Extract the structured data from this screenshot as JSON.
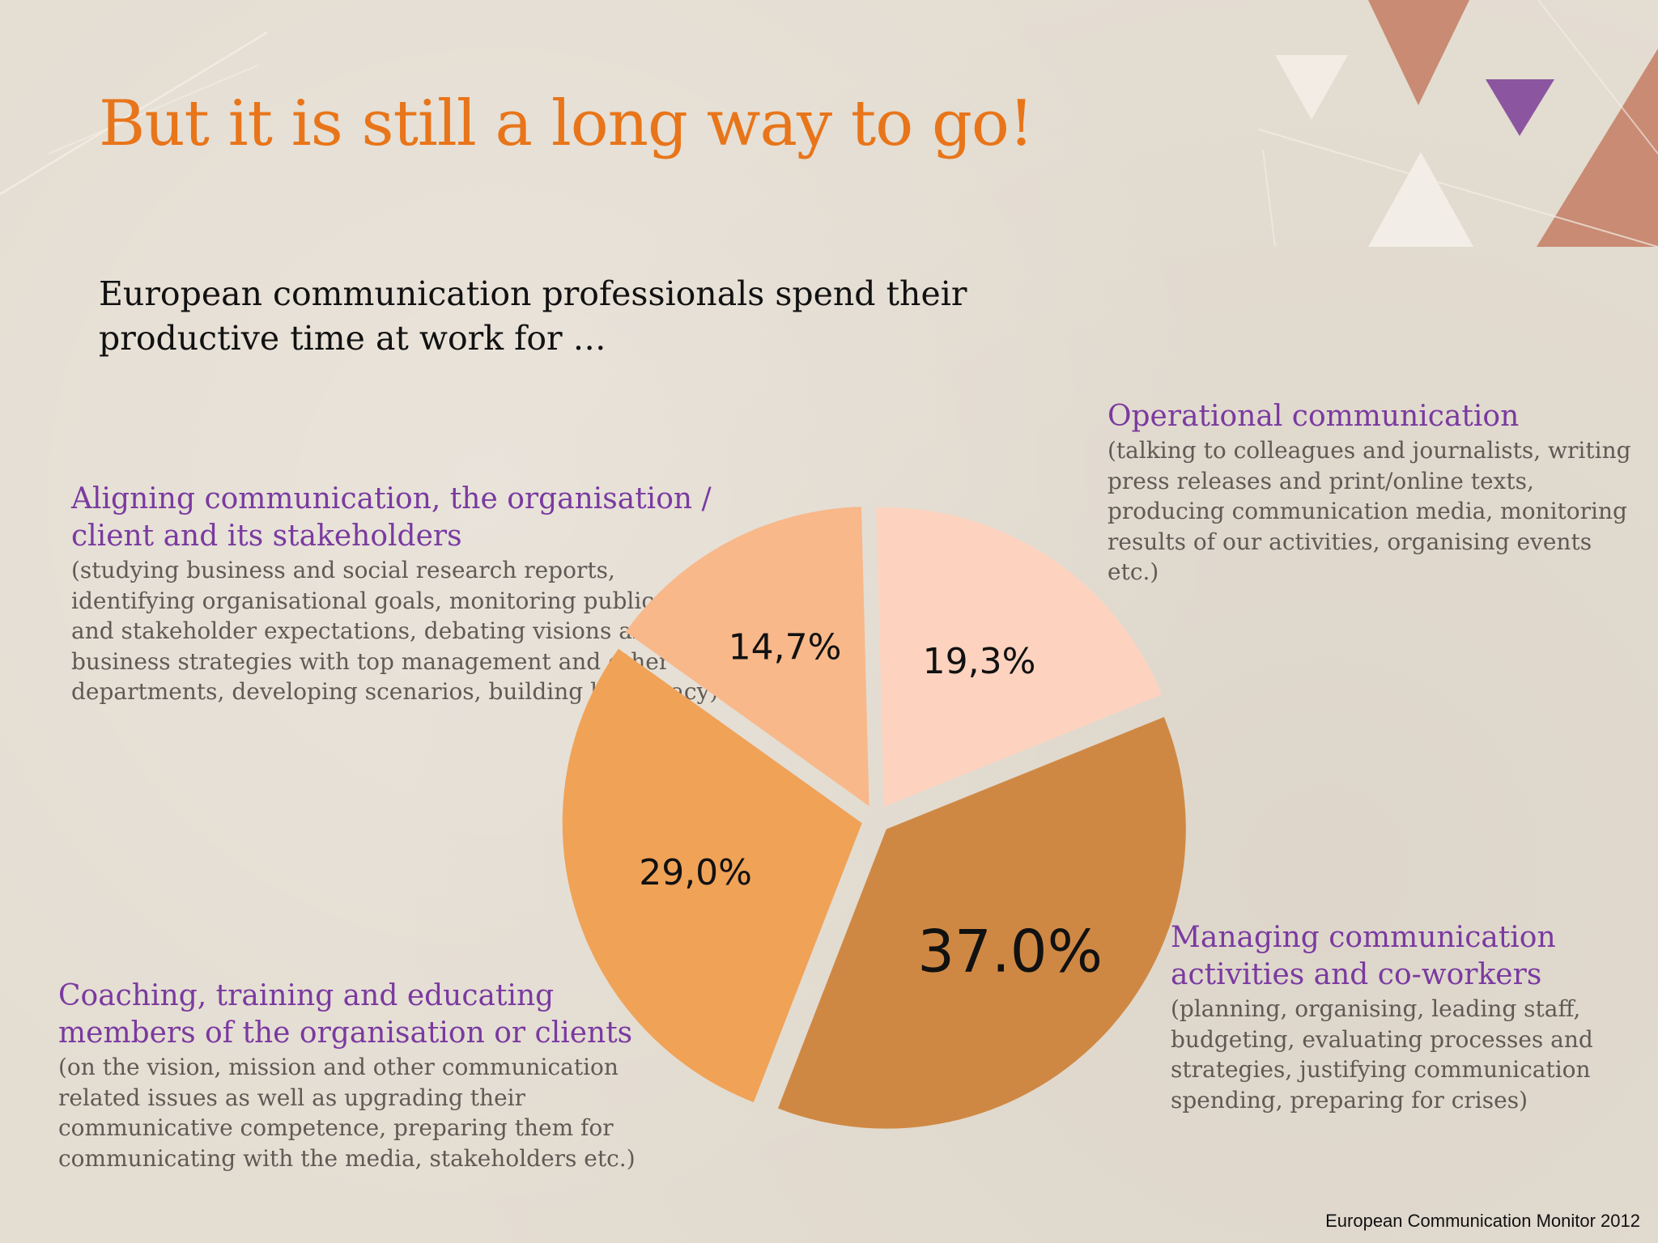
{
  "title": "But it is still a long way to go!",
  "subtitle": "European communication professionals spend their productive time at work for …",
  "source": "European Communication Monitor 2012",
  "colors": {
    "title": "#e8751a",
    "heading": "#7a3aa0",
    "description": "#5f5a55",
    "background": "#e4ddd2"
  },
  "blocks": {
    "operational": {
      "heading": "Operational communication",
      "description": "(talking to colleagues and journalists, writing press releases and print/online texts, producing communication media, monitoring results of  our activities, organising events etc.)"
    },
    "aligning": {
      "heading": "Aligning communication, the organisation / client and its stakeholders",
      "description": "(studying business and social research reports, identifying organisational goals, monitoring public issues and stakeholder expectations, debating visions and business strategies with top management and other departments, developing scenarios, building legitimacy)"
    },
    "managing": {
      "heading": "Managing communication activities and co-workers",
      "description": "(planning, organising, leading staff, budgeting, evaluating processes and strategies, justifying communication spending, preparing for crises)"
    },
    "coaching": {
      "heading": "Coaching, training and educating members of the organisation or clients",
      "description": "(on the vision, mission and other communication related issues as well as upgrading their communicative competence, preparing them for communicating with the media, stakeholders etc.)"
    }
  },
  "chart_data": {
    "type": "pie",
    "slices": [
      {
        "category": "Operational communication",
        "value": 37.0,
        "label": "37.0%",
        "color": "#cf8843"
      },
      {
        "category": "Managing communication activities and co-workers",
        "value": 29.0,
        "label": "29,0%",
        "color": "#f0a257"
      },
      {
        "category": "Coaching, training and educating members of the organisation or clients",
        "value": 14.7,
        "label": "14,7%",
        "color": "#f8b88a"
      },
      {
        "category": "Aligning communication, the organisation / client and its stakeholders",
        "value": 19.3,
        "label": "19,3%",
        "color": "#fdd3bf"
      }
    ],
    "start_angle_deg": -22,
    "direction": "clockwise",
    "exploded": true
  }
}
